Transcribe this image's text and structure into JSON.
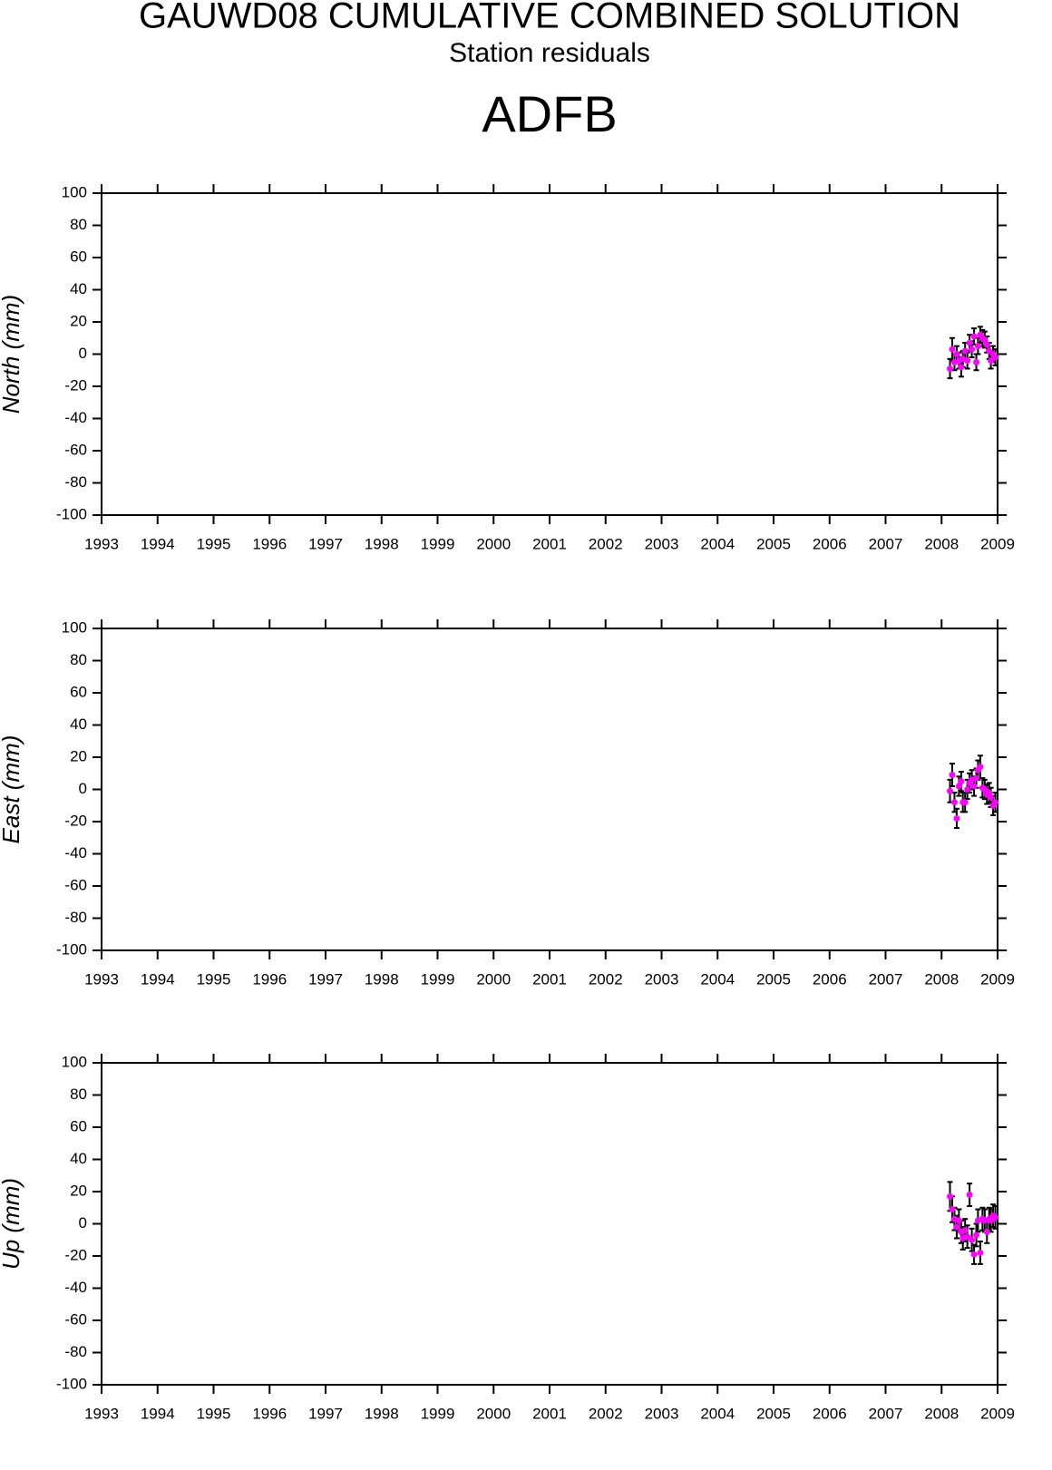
{
  "header": {
    "title": "GAUWD08 CUMULATIVE COMBINED SOLUTION",
    "subtitle": "Station residuals",
    "station": "ADFB"
  },
  "chart_data": [
    {
      "type": "scatter",
      "ylabel": "North (mm)",
      "color": "#ff00ff",
      "error_color": "#000000",
      "x": [
        2008.15,
        2008.19,
        2008.23,
        2008.27,
        2008.31,
        2008.35,
        2008.38,
        2008.42,
        2008.46,
        2008.5,
        2008.54,
        2008.58,
        2008.62,
        2008.65,
        2008.69,
        2008.73,
        2008.77,
        2008.81,
        2008.85,
        2008.88,
        2008.92,
        2008.96
      ],
      "values": [
        -9,
        3,
        -5,
        0,
        -4,
        -8,
        -3,
        2,
        -4,
        7,
        3,
        11,
        -5,
        5,
        12,
        10,
        9,
        6,
        2,
        -4,
        0,
        -2
      ],
      "errors": [
        6,
        7,
        5,
        5,
        5,
        6,
        5,
        5,
        5,
        5,
        5,
        5,
        5,
        5,
        5,
        5,
        5,
        5,
        5,
        5,
        5,
        5
      ],
      "xlim": [
        1993,
        2009
      ],
      "xticks": [
        1993,
        1994,
        1995,
        1996,
        1997,
        1998,
        1999,
        2000,
        2001,
        2002,
        2003,
        2004,
        2005,
        2006,
        2007,
        2008,
        2009
      ],
      "ylim": [
        -100,
        100
      ],
      "yticks": [
        -100,
        -80,
        -60,
        -40,
        -20,
        0,
        20,
        40,
        60,
        80,
        100
      ]
    },
    {
      "type": "scatter",
      "ylabel": "East (mm)",
      "color": "#ff00ff",
      "error_color": "#000000",
      "x": [
        2008.15,
        2008.19,
        2008.23,
        2008.27,
        2008.31,
        2008.35,
        2008.38,
        2008.42,
        2008.46,
        2008.5,
        2008.54,
        2008.58,
        2008.62,
        2008.65,
        2008.69,
        2008.73,
        2008.77,
        2008.81,
        2008.85,
        2008.88,
        2008.92,
        2008.96
      ],
      "values": [
        -1,
        9,
        -8,
        -18,
        2,
        5,
        -8,
        -8,
        0,
        4,
        6,
        2,
        7,
        12,
        14,
        1,
        0,
        -3,
        -2,
        -5,
        -10,
        -8
      ],
      "errors": [
        7,
        7,
        6,
        6,
        6,
        6,
        6,
        6,
        6,
        6,
        6,
        6,
        6,
        6,
        7,
        6,
        6,
        6,
        6,
        6,
        6,
        6
      ],
      "xlim": [
        1993,
        2009
      ],
      "xticks": [
        1993,
        1994,
        1995,
        1996,
        1997,
        1998,
        1999,
        2000,
        2001,
        2002,
        2003,
        2004,
        2005,
        2006,
        2007,
        2008,
        2009
      ],
      "ylim": [
        -100,
        100
      ],
      "yticks": [
        -100,
        -80,
        -60,
        -40,
        -20,
        0,
        20,
        40,
        60,
        80,
        100
      ]
    },
    {
      "type": "scatter",
      "ylabel": "Up (mm)",
      "color": "#ff00ff",
      "error_color": "#000000",
      "x": [
        2008.15,
        2008.19,
        2008.23,
        2008.27,
        2008.31,
        2008.35,
        2008.38,
        2008.42,
        2008.46,
        2008.5,
        2008.54,
        2008.58,
        2008.62,
        2008.65,
        2008.69,
        2008.73,
        2008.77,
        2008.81,
        2008.85,
        2008.88,
        2008.92,
        2008.96
      ],
      "values": [
        17,
        9,
        3,
        -2,
        2,
        -5,
        -9,
        -4,
        -8,
        18,
        -10,
        -19,
        -7,
        2,
        -18,
        3,
        2,
        -5,
        3,
        2,
        5,
        4
      ],
      "errors": [
        9,
        8,
        7,
        7,
        7,
        7,
        7,
        7,
        7,
        7,
        7,
        6,
        7,
        7,
        7,
        7,
        7,
        7,
        7,
        7,
        7,
        7
      ],
      "xlim": [
        1993,
        2009
      ],
      "xticks": [
        1993,
        1994,
        1995,
        1996,
        1997,
        1998,
        1999,
        2000,
        2001,
        2002,
        2003,
        2004,
        2005,
        2006,
        2007,
        2008,
        2009
      ],
      "ylim": [
        -100,
        100
      ],
      "yticks": [
        -100,
        -80,
        -60,
        -40,
        -20,
        0,
        20,
        40,
        60,
        80,
        100
      ]
    }
  ]
}
